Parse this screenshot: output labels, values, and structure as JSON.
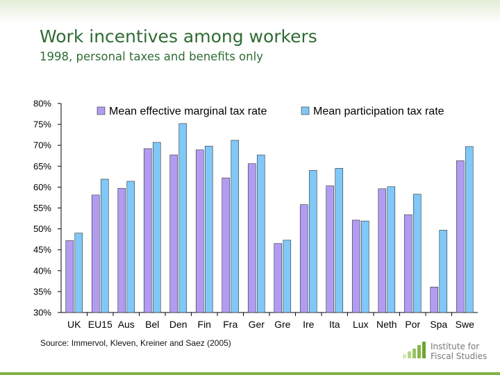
{
  "header": {
    "title": "Work incentives among workers",
    "subtitle": "1998, personal taxes and benefits only"
  },
  "source": "Source: Immervol, Kleven, Kreiner and Saez (2005)",
  "logo": {
    "line1": "Institute for",
    "line2": "Fiscal Studies"
  },
  "colors": {
    "series1": "#b19cf2",
    "series2": "#7fc8f8",
    "accent_green": "#2f6b34",
    "logo_green": "#7db442"
  },
  "chart_data": {
    "type": "bar",
    "categories": [
      "UK",
      "EU15",
      "Aus",
      "Bel",
      "Den",
      "Fin",
      "Fra",
      "Ger",
      "Gre",
      "Ire",
      "Ita",
      "Lux",
      "Neth",
      "Por",
      "Spa",
      "Swe"
    ],
    "series": [
      {
        "name": "Mean effective marginal tax rate",
        "values": [
          47.2,
          58.1,
          59.7,
          69.2,
          67.7,
          68.9,
          62.2,
          65.6,
          46.5,
          55.8,
          60.3,
          52.1,
          59.6,
          53.4,
          36.1,
          66.3
        ]
      },
      {
        "name": "Mean participation tax rate",
        "values": [
          49.0,
          61.9,
          61.4,
          70.7,
          75.2,
          69.8,
          71.2,
          67.7,
          47.3,
          64.0,
          64.5,
          51.9,
          60.1,
          58.3,
          49.7,
          69.7
        ]
      }
    ],
    "ylim": [
      30,
      80
    ],
    "yticks": [
      "30%",
      "35%",
      "40%",
      "45%",
      "50%",
      "55%",
      "60%",
      "65%",
      "70%",
      "75%",
      "80%"
    ],
    "xlabel": "",
    "ylabel": "",
    "legend": "top",
    "grid": false
  }
}
